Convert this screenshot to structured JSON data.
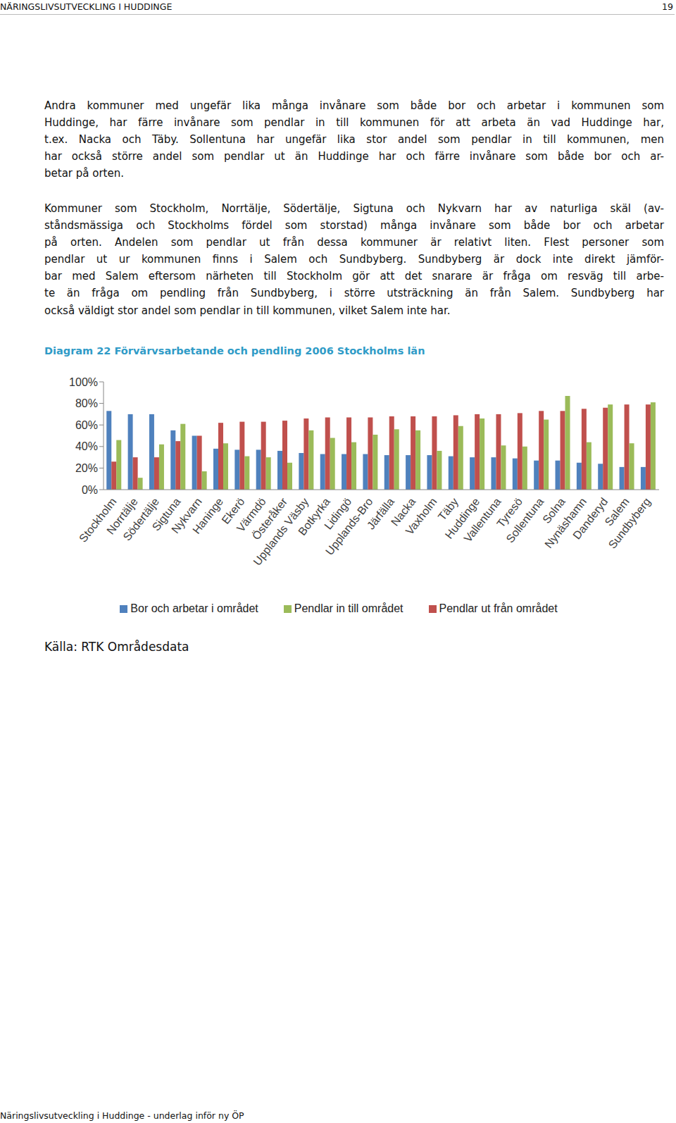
{
  "header": {
    "title": "NÄRINGSLIVSUTVECKLING I HUDDINGE",
    "page": "19"
  },
  "paragraphs": [
    [
      "Andra kommuner med ungefär lika många invånare som både bor och arbetar i kommunen som",
      "Huddinge, har färre invånare som pendlar in till kommunen för att arbeta än vad Huddinge har,",
      "t.ex. Nacka och Täby. Sollentuna har ungefär lika stor andel som pendlar in till kommunen, men",
      "har också större andel som pendlar ut än Huddinge har och färre invånare som både bor och ar-",
      "betar på orten."
    ],
    [
      "Kommuner som Stockholm, Norrtälje, Södertälje, Sigtuna och Nykvarn har av naturliga skäl (av-",
      "ståndsmässiga och Stockholms fördel som storstad) många invånare som både bor och arbetar",
      "på orten. Andelen som pendlar ut från dessa kommuner är relativt liten. Flest personer som",
      "pendlar ut ur kommunen finns i Salem och Sundbyberg. Sundbyberg är dock inte direkt jämför-",
      "bar med Salem eftersom närheten till Stockholm gör att det snarare är fråga om resväg till arbe-",
      "te än fråga om pendling från Sundbyberg, i större utsträckning än från Salem. Sundbyberg har",
      "också väldigt stor andel som pendlar in till kommunen, vilket Salem inte har."
    ]
  ],
  "chart_data": {
    "type": "bar",
    "title": "Diagram 22 Förvärvsarbetande och pendling 2006 Stockholms län",
    "categories": [
      "Stockholm",
      "Norrtälje",
      "Södertälje",
      "Sigtuna",
      "Nykvarn",
      "Haninge",
      "Ekerö",
      "Värmdö",
      "Österåker",
      "Upplands Väsby",
      "Botkyrka",
      "Lidingö",
      "Upplands-Bro",
      "Järfälla",
      "Nacka",
      "Vaxholm",
      "Täby",
      "Huddinge",
      "Vallentuna",
      "Tyresö",
      "Sollentuna",
      "Solna",
      "Nynäshamn",
      "Danderyd",
      "Salem",
      "Sundbyberg"
    ],
    "series": [
      {
        "name": "Bor och arbetar i området",
        "color": "#4f81bd",
        "values": [
          73,
          70,
          70,
          55,
          50,
          38,
          37,
          37,
          36,
          34,
          33,
          33,
          33,
          32,
          32,
          32,
          31,
          30,
          30,
          29,
          27,
          27,
          25,
          24,
          21,
          21
        ]
      },
      {
        "name": "Pendlar ut från området",
        "color": "#c0504d",
        "values": [
          26,
          30,
          30,
          45,
          50,
          62,
          63,
          63,
          64,
          66,
          67,
          67,
          67,
          68,
          68,
          68,
          69,
          70,
          70,
          71,
          73,
          73,
          75,
          76,
          79,
          79
        ]
      },
      {
        "name": "Pendlar in till området",
        "color": "#9bbb59",
        "values": [
          46,
          11,
          42,
          61,
          17,
          43,
          31,
          30,
          25,
          55,
          48,
          44,
          51,
          56,
          55,
          36,
          59,
          66,
          41,
          40,
          65,
          87,
          44,
          79,
          43,
          81
        ]
      }
    ],
    "ylim": [
      0,
      100
    ],
    "yticks": [
      {
        "value": 0,
        "label": "0%"
      },
      {
        "value": 20,
        "label": "20%"
      },
      {
        "value": 40,
        "label": "40%"
      },
      {
        "value": 60,
        "label": "60%"
      },
      {
        "value": 80,
        "label": "80%"
      },
      {
        "value": 100,
        "label": "100%"
      }
    ],
    "grid": false,
    "legend": "bottom"
  },
  "source": "Källa: RTK Områdesdata",
  "footer": "Näringslivsutveckling i Huddinge - underlag inför ny ÖP"
}
